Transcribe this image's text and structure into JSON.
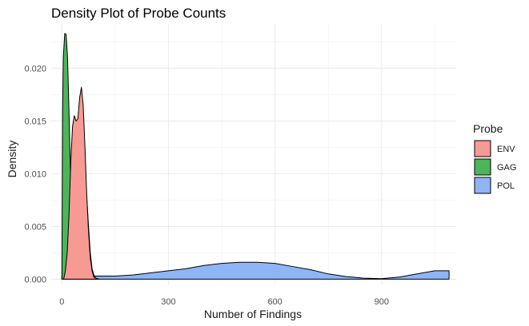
{
  "chart_data": {
    "type": "area",
    "title": "Density Plot of Probe Counts",
    "xlabel": "Number of Findings",
    "ylabel": "Density",
    "xlim": [
      -30,
      1110
    ],
    "ylim": [
      -0.0005,
      0.0242
    ],
    "x_ticks": [
      0,
      300,
      600,
      900
    ],
    "y_ticks": [
      0.0,
      0.005,
      0.01,
      0.015,
      0.02
    ],
    "x_tick_labels": [
      "0",
      "300",
      "600",
      "900"
    ],
    "y_tick_labels": [
      "0.000",
      "0.005",
      "0.010",
      "0.015",
      "0.020"
    ],
    "grid": true,
    "legend": {
      "title": "Probe",
      "position": "right"
    },
    "series": [
      {
        "name": "POL",
        "color": "#8fb5f6",
        "x": [
          0,
          80,
          100,
          150,
          200,
          250,
          300,
          350,
          400,
          450,
          500,
          550,
          600,
          650,
          700,
          750,
          800,
          850,
          900,
          950,
          1000,
          1050,
          1090
        ],
        "y": [
          0.0003,
          0.0003,
          0.0003,
          0.0003,
          0.0004,
          0.0006,
          0.0008,
          0.001,
          0.0013,
          0.0015,
          0.0016,
          0.0016,
          0.0015,
          0.0012,
          0.0009,
          0.0005,
          0.00025,
          0.0001,
          5e-05,
          0.0002,
          0.0005,
          0.0008,
          0.0008
        ]
      },
      {
        "name": "GAG",
        "color": "#4cb55a",
        "x": [
          0,
          2,
          4,
          8,
          12,
          16,
          20,
          25,
          30,
          35,
          40,
          45,
          50,
          55,
          60,
          65,
          70,
          75,
          80,
          85,
          90,
          95,
          100
        ],
        "y": [
          0.0,
          0.016,
          0.021,
          0.0233,
          0.0232,
          0.021,
          0.016,
          0.009,
          0.0035,
          0.001,
          0.0007,
          0.0007,
          0.0012,
          0.003,
          0.006,
          0.0082,
          0.0078,
          0.005,
          0.0025,
          0.001,
          0.0004,
          0.0001,
          0.0
        ]
      },
      {
        "name": "ENV",
        "color": "#f79a93",
        "x": [
          5,
          10,
          15,
          20,
          25,
          30,
          35,
          40,
          45,
          50,
          55,
          60,
          65,
          70,
          75,
          80,
          85,
          90,
          95,
          100,
          105
        ],
        "y": [
          0.0,
          0.0008,
          0.0025,
          0.006,
          0.011,
          0.0145,
          0.0155,
          0.015,
          0.0152,
          0.0172,
          0.0182,
          0.0165,
          0.0125,
          0.008,
          0.0045,
          0.002,
          0.0008,
          0.0002,
          0.0001,
          5e-05,
          0.0
        ]
      }
    ],
    "legend_order": [
      "ENV",
      "GAG",
      "POL"
    ]
  }
}
